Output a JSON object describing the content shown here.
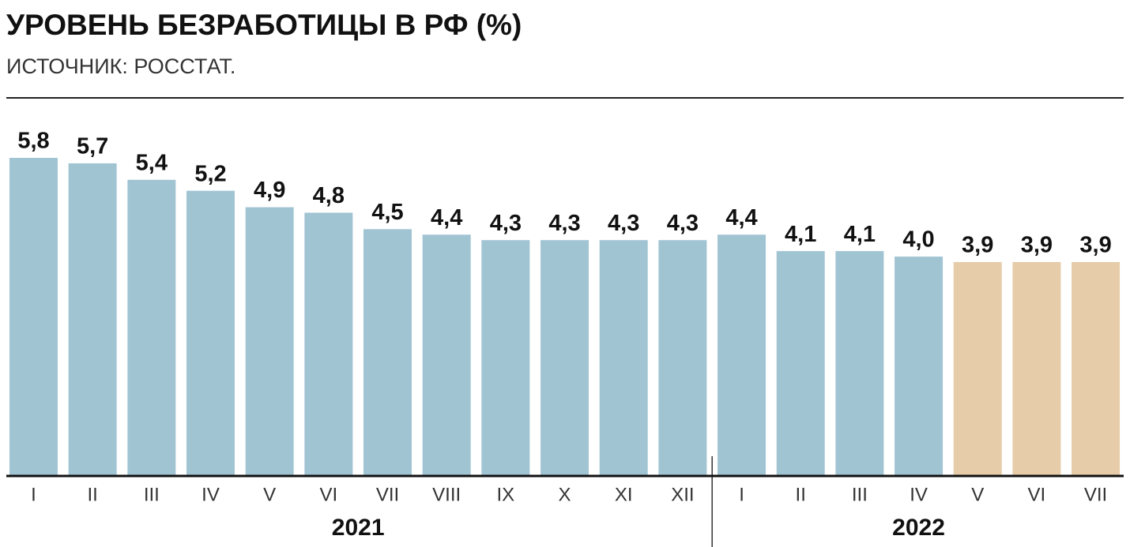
{
  "chart_data": {
    "type": "bar",
    "title": "УРОВЕНЬ БЕЗРАБОТИЦЫ В РФ (%)",
    "subtitle": "ИСТОЧНИК: РОССТАТ.",
    "groups": [
      {
        "name": "2021",
        "categories": [
          "I",
          "II",
          "III",
          "IV",
          "V",
          "VI",
          "VII",
          "VIII",
          "IX",
          "X",
          "XI",
          "XII"
        ],
        "values": [
          5.8,
          5.7,
          5.4,
          5.2,
          4.9,
          4.8,
          4.5,
          4.4,
          4.3,
          4.3,
          4.3,
          4.3
        ],
        "value_labels": [
          "5,8",
          "5,7",
          "5,4",
          "5,2",
          "4,9",
          "4,8",
          "4,5",
          "4,4",
          "4,3",
          "4,3",
          "4,3",
          "4,3"
        ],
        "colors": [
          "#a1c4d3",
          "#a1c4d3",
          "#a1c4d3",
          "#a1c4d3",
          "#a1c4d3",
          "#a1c4d3",
          "#a1c4d3",
          "#a1c4d3",
          "#a1c4d3",
          "#a1c4d3",
          "#a1c4d3",
          "#a1c4d3"
        ]
      },
      {
        "name": "2022",
        "categories": [
          "I",
          "II",
          "III",
          "IV",
          "V",
          "VI",
          "VII"
        ],
        "values": [
          4.4,
          4.1,
          4.1,
          4.0,
          3.9,
          3.9,
          3.9
        ],
        "value_labels": [
          "4,4",
          "4,1",
          "4,1",
          "4,0",
          "3,9",
          "3,9",
          "3,9"
        ],
        "colors": [
          "#a1c4d3",
          "#a1c4d3",
          "#a1c4d3",
          "#a1c4d3",
          "#e6cca8",
          "#e6cca8",
          "#e6cca8"
        ]
      }
    ]
  }
}
